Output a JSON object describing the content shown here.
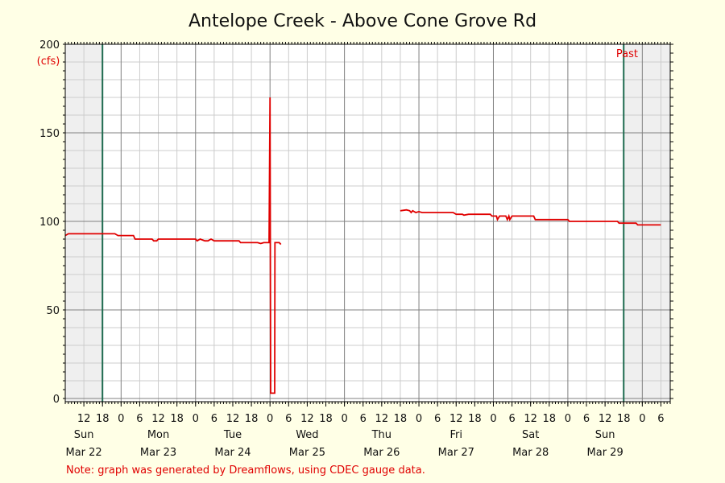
{
  "chart_data": {
    "type": "line",
    "title": "Antelope Creek - Above Cone Grove Rd",
    "y_unit": "(cfs)",
    "ylim": [
      0,
      200
    ],
    "y_ticks": [
      0,
      50,
      100,
      150,
      200
    ],
    "x_range_hours": [
      -12,
      183
    ],
    "x_hour_ticks": [
      {
        "h": -6,
        "label": "12"
      },
      {
        "h": 0,
        "label": "18"
      },
      {
        "h": 6,
        "label": "0"
      },
      {
        "h": 12,
        "label": "6"
      },
      {
        "h": 18,
        "label": "12"
      },
      {
        "h": 24,
        "label": "18"
      },
      {
        "h": 30,
        "label": "0"
      },
      {
        "h": 36,
        "label": "6"
      },
      {
        "h": 42,
        "label": "12"
      },
      {
        "h": 48,
        "label": "18"
      },
      {
        "h": 54,
        "label": "0"
      },
      {
        "h": 60,
        "label": "6"
      },
      {
        "h": 66,
        "label": "12"
      },
      {
        "h": 72,
        "label": "18"
      },
      {
        "h": 78,
        "label": "0"
      },
      {
        "h": 84,
        "label": "6"
      },
      {
        "h": 90,
        "label": "12"
      },
      {
        "h": 96,
        "label": "18"
      },
      {
        "h": 102,
        "label": "0"
      },
      {
        "h": 108,
        "label": "6"
      },
      {
        "h": 114,
        "label": "12"
      },
      {
        "h": 120,
        "label": "18"
      },
      {
        "h": 126,
        "label": "0"
      },
      {
        "h": 132,
        "label": "6"
      },
      {
        "h": 138,
        "label": "12"
      },
      {
        "h": 144,
        "label": "18"
      },
      {
        "h": 150,
        "label": "0"
      },
      {
        "h": 156,
        "label": "6"
      },
      {
        "h": 162,
        "label": "12"
      },
      {
        "h": 168,
        "label": "18"
      },
      {
        "h": 174,
        "label": "0"
      },
      {
        "h": 180,
        "label": "6"
      }
    ],
    "days": [
      {
        "h": -6,
        "name": "Sun",
        "date": "Mar 22"
      },
      {
        "h": 18,
        "name": "Mon",
        "date": "Mar 23"
      },
      {
        "h": 42,
        "name": "Tue",
        "date": "Mar 24"
      },
      {
        "h": 66,
        "name": "Wed",
        "date": "Mar 25"
      },
      {
        "h": 90,
        "name": "Thu",
        "date": "Mar 26"
      },
      {
        "h": 114,
        "name": "Fri",
        "date": "Mar 27"
      },
      {
        "h": 138,
        "name": "Sat",
        "date": "Mar 28"
      },
      {
        "h": 162,
        "name": "Sun",
        "date": "Mar 29"
      }
    ],
    "past_label": "Past",
    "series": [
      {
        "color": "#e00000",
        "points": [
          [
            -12,
            92
          ],
          [
            -11,
            93
          ],
          [
            4,
            93
          ],
          [
            5,
            92
          ],
          [
            10,
            92
          ],
          [
            10.5,
            90
          ],
          [
            16,
            90
          ],
          [
            16.5,
            89
          ],
          [
            17.5,
            89
          ],
          [
            18,
            90
          ],
          [
            30,
            90
          ],
          [
            30.5,
            89
          ],
          [
            31.5,
            90
          ],
          [
            33,
            89
          ],
          [
            34,
            89
          ],
          [
            35,
            90
          ],
          [
            36,
            89
          ],
          [
            44,
            89
          ],
          [
            44.5,
            88
          ],
          [
            50,
            88
          ],
          [
            51,
            87.5
          ],
          [
            52,
            88
          ],
          [
            53.7,
            88
          ],
          [
            54,
            170
          ],
          [
            54.2,
            3
          ],
          [
            55.5,
            3
          ],
          [
            55.6,
            88
          ],
          [
            57,
            88
          ],
          [
            57.5,
            87
          ],
          null,
          [
            96,
            106
          ],
          [
            98,
            106.5
          ],
          [
            99,
            106
          ],
          [
            99.5,
            105
          ],
          [
            100,
            106
          ],
          [
            101,
            105
          ],
          [
            102,
            105.5
          ],
          [
            103,
            105
          ],
          [
            113,
            105
          ],
          [
            114,
            104
          ],
          [
            116,
            104
          ],
          [
            116.5,
            103.5
          ],
          [
            118,
            104
          ],
          [
            125,
            104
          ],
          [
            125.5,
            103
          ],
          [
            127,
            103
          ],
          [
            127.3,
            101
          ],
          [
            128,
            103
          ],
          [
            130,
            103
          ],
          [
            130.5,
            101
          ],
          [
            131,
            103
          ],
          [
            131.3,
            101
          ],
          [
            132,
            103
          ],
          [
            139,
            103
          ],
          [
            139.5,
            101
          ],
          [
            150,
            101
          ],
          [
            150.5,
            100
          ],
          [
            166,
            100
          ],
          [
            166.5,
            99
          ],
          [
            172,
            99
          ],
          [
            172.5,
            98
          ],
          [
            180,
            98
          ]
        ]
      }
    ]
  },
  "note": "Note: graph was generated by Dreamflows, using CDEC gauge data.",
  "colors": {
    "background": "#ffffe6",
    "plot_area": "#ffffff",
    "shade": "#efefef",
    "grid_major": "#808080",
    "grid_minor": "#cccccc",
    "marker": "#1e6b4f",
    "series": "#e00000"
  }
}
